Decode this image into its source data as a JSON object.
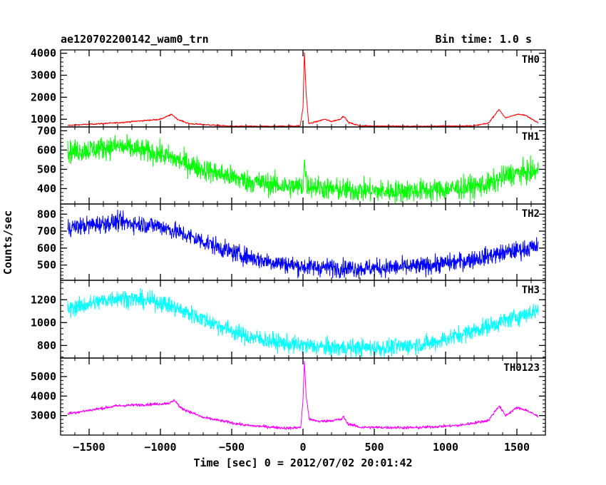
{
  "chart_data": {
    "type": "line",
    "title_left": "ae120702200142_wam0_trn",
    "title_right": "Bin time: 1.0 s",
    "xlabel": "Time [sec] 0 = 2012/07/02 20:01:42",
    "ylabel": "Counts/sec",
    "xlim": [
      -1700,
      1700
    ],
    "x_ticks": [
      -1500,
      -1000,
      -500,
      0,
      500,
      1000,
      1500
    ],
    "x_tick_labels": [
      "−1500",
      "−1000",
      "−500",
      "0",
      "500",
      "1000",
      "1500"
    ],
    "x_range_data": [
      -1650,
      1650
    ],
    "bin_time_s": 1.0,
    "panels": [
      {
        "name": "TH0",
        "color": "#ff0000",
        "ylim": [
          650,
          4150
        ],
        "yticks": [
          1000,
          2000,
          3000,
          4000
        ],
        "minor_step": 200,
        "noise": 25,
        "points": [
          [
            -1650,
            720
          ],
          [
            -1300,
            840
          ],
          [
            -1000,
            1000
          ],
          [
            -920,
            1220
          ],
          [
            -880,
            1000
          ],
          [
            -800,
            800
          ],
          [
            -500,
            680
          ],
          [
            -200,
            680
          ],
          [
            -20,
            700
          ],
          [
            0,
            1500
          ],
          [
            10,
            4050
          ],
          [
            22,
            2200
          ],
          [
            40,
            800
          ],
          [
            100,
            900
          ],
          [
            150,
            1000
          ],
          [
            200,
            900
          ],
          [
            260,
            1000
          ],
          [
            285,
            1150
          ],
          [
            320,
            850
          ],
          [
            400,
            700
          ],
          [
            800,
            680
          ],
          [
            1200,
            700
          ],
          [
            1300,
            820
          ],
          [
            1375,
            1450
          ],
          [
            1420,
            1050
          ],
          [
            1500,
            1230
          ],
          [
            1560,
            1180
          ],
          [
            1650,
            850
          ]
        ]
      },
      {
        "name": "TH1",
        "color": "#00ff00",
        "ylim": [
          320,
          720
        ],
        "yticks": [
          400,
          500,
          600,
          700
        ],
        "minor_step": 20,
        "noise": 42,
        "points": [
          [
            -1650,
            590
          ],
          [
            -1300,
            620
          ],
          [
            -1000,
            580
          ],
          [
            -700,
            500
          ],
          [
            -400,
            440
          ],
          [
            -100,
            410
          ],
          [
            0,
            410
          ],
          [
            10,
            540
          ],
          [
            25,
            420
          ],
          [
            200,
            395
          ],
          [
            600,
            385
          ],
          [
            1000,
            395
          ],
          [
            1300,
            420
          ],
          [
            1450,
            475
          ],
          [
            1650,
            490
          ]
        ]
      },
      {
        "name": "TH2",
        "color": "#0000ff",
        "ylim": [
          410,
          860
        ],
        "yticks": [
          500,
          600,
          700,
          800
        ],
        "minor_step": 20,
        "noise": 38,
        "points": [
          [
            -1650,
            720
          ],
          [
            -1300,
            755
          ],
          [
            -1000,
            730
          ],
          [
            -700,
            640
          ],
          [
            -500,
            575
          ],
          [
            -300,
            530
          ],
          [
            0,
            490
          ],
          [
            400,
            480
          ],
          [
            800,
            490
          ],
          [
            1100,
            520
          ],
          [
            1400,
            570
          ],
          [
            1650,
            610
          ]
        ]
      },
      {
        "name": "TH3",
        "color": "#00ffff",
        "ylim": [
          690,
          1370
        ],
        "yticks": [
          800,
          1000,
          1200
        ],
        "minor_step": 50,
        "noise": 55,
        "points": [
          [
            -1650,
            1120
          ],
          [
            -1300,
            1220
          ],
          [
            -1000,
            1180
          ],
          [
            -700,
            1030
          ],
          [
            -400,
            880
          ],
          [
            -100,
            810
          ],
          [
            200,
            780
          ],
          [
            600,
            780
          ],
          [
            900,
            820
          ],
          [
            1200,
            930
          ],
          [
            1500,
            1050
          ],
          [
            1650,
            1110
          ]
        ]
      },
      {
        "name": "TH0123",
        "color": "#ff00ff",
        "ylim": [
          2000,
          5950
        ],
        "yticks": [
          3000,
          4000,
          5000
        ],
        "minor_step": 200,
        "noise": 60,
        "points": [
          [
            -1650,
            3100
          ],
          [
            -1300,
            3500
          ],
          [
            -1000,
            3600
          ],
          [
            -930,
            3650
          ],
          [
            -900,
            3800
          ],
          [
            -860,
            3400
          ],
          [
            -700,
            2900
          ],
          [
            -400,
            2500
          ],
          [
            -100,
            2350
          ],
          [
            -15,
            2400
          ],
          [
            0,
            3800
          ],
          [
            10,
            5800
          ],
          [
            22,
            4000
          ],
          [
            45,
            2800
          ],
          [
            120,
            2700
          ],
          [
            200,
            2750
          ],
          [
            270,
            2800
          ],
          [
            285,
            2950
          ],
          [
            310,
            2600
          ],
          [
            400,
            2400
          ],
          [
            800,
            2380
          ],
          [
            1100,
            2500
          ],
          [
            1300,
            2750
          ],
          [
            1375,
            3500
          ],
          [
            1420,
            3000
          ],
          [
            1500,
            3400
          ],
          [
            1560,
            3300
          ],
          [
            1650,
            2950
          ]
        ]
      }
    ]
  }
}
